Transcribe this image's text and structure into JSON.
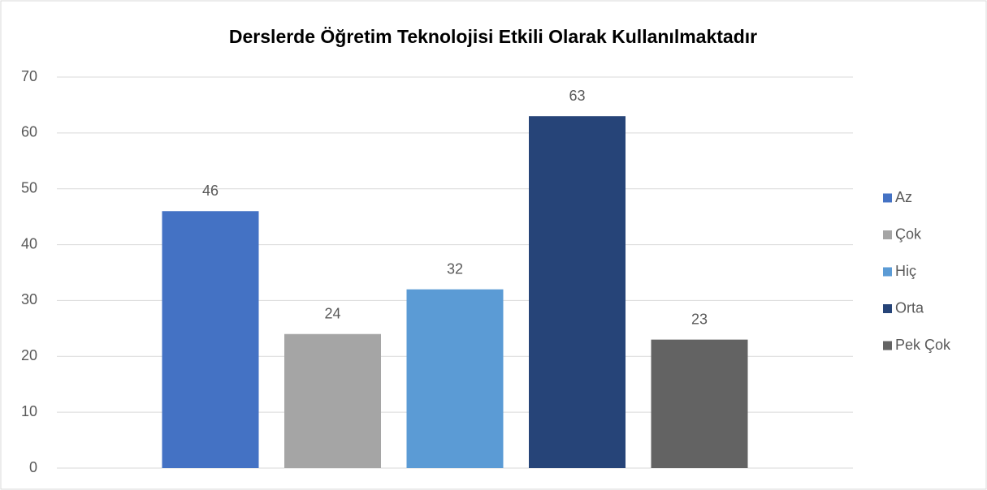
{
  "chart_data": {
    "type": "bar",
    "title": "Derslerde Öğretim Teknolojisi Etkili Olarak Kullanılmaktadır",
    "series": [
      {
        "name": "Az",
        "color": "#4472c4",
        "values": [
          46
        ]
      },
      {
        "name": "Çok",
        "color": "#a5a5a5",
        "values": [
          24
        ]
      },
      {
        "name": "Hiç",
        "color": "#5b9bd5",
        "values": [
          32
        ]
      },
      {
        "name": "Orta",
        "color": "#264478",
        "values": [
          63
        ]
      },
      {
        "name": "Pek Çok",
        "color": "#636363",
        "values": [
          23
        ]
      }
    ],
    "ylim": [
      0,
      70
    ],
    "yticks": [
      0,
      10,
      20,
      30,
      40,
      50,
      60,
      70
    ],
    "grid": true,
    "legend": "right"
  }
}
